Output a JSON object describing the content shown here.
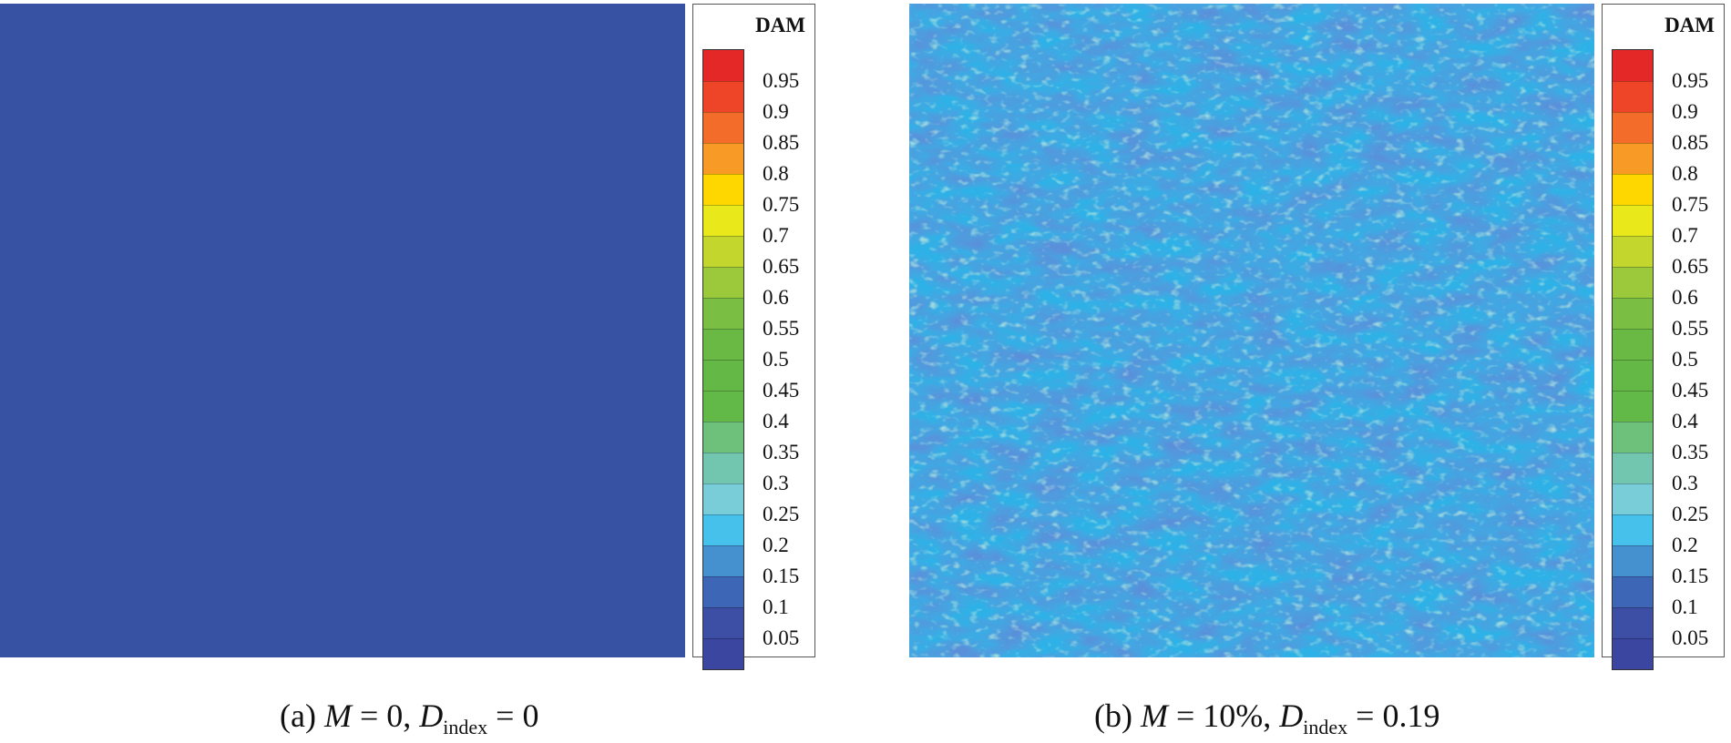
{
  "panels": [
    {
      "id": "a",
      "field_color": "#3852A3",
      "caption": {
        "label": "(a)",
        "var_m": "M",
        "eq1": " = 0, ",
        "var_d": "D",
        "sub": "index",
        "eq2": " = 0"
      }
    },
    {
      "id": "b",
      "field_color": "#2FB1E6",
      "caption": {
        "label": "(b)",
        "var_m": "M",
        "eq1": " = 10%, ",
        "var_d": "D",
        "sub": "index",
        "eq2": " = 0.19"
      }
    }
  ],
  "legend": {
    "title": "DAM",
    "levels": [
      "0.95",
      "0.9",
      "0.85",
      "0.8",
      "0.75",
      "0.7",
      "0.65",
      "0.6",
      "0.55",
      "0.5",
      "0.45",
      "0.4",
      "0.35",
      "0.3",
      "0.25",
      "0.2",
      "0.15",
      "0.1",
      "0.05"
    ],
    "colors": [
      "#E42828",
      "#EE4427",
      "#F36C2A",
      "#F89A26",
      "#FFD700",
      "#E8E81A",
      "#C2D62E",
      "#9CC93B",
      "#7BBE44",
      "#6AB945",
      "#64B846",
      "#63B947",
      "#6DC17A",
      "#72C6B0",
      "#79CDD8",
      "#46C1EC",
      "#4591D0",
      "#3D66B6",
      "#3C4FA5",
      "#3A46A0"
    ]
  },
  "chart_data": {
    "type": "heatmap",
    "variable": "DAM",
    "color_levels": [
      0.05,
      0.1,
      0.15,
      0.2,
      0.25,
      0.3,
      0.35,
      0.4,
      0.45,
      0.5,
      0.55,
      0.6,
      0.65,
      0.7,
      0.75,
      0.8,
      0.85,
      0.9,
      0.95
    ],
    "panels": [
      {
        "label": "(a)",
        "M": "0",
        "D_index": 0,
        "dominant_range": [
          0.05,
          0.1
        ]
      },
      {
        "label": "(b)",
        "M": "10%",
        "D_index": 0.19,
        "dominant_range": [
          0.1,
          0.25
        ]
      }
    ]
  }
}
